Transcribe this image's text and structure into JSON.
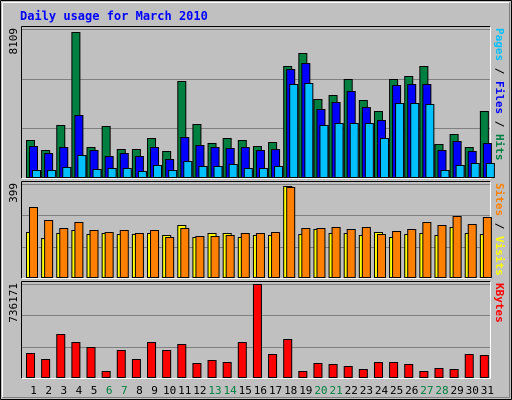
{
  "chart_data": {
    "type": "bar",
    "title": "Daily usage for March 2010",
    "categories": [
      "1",
      "2",
      "3",
      "4",
      "5",
      "6",
      "7",
      "8",
      "9",
      "10",
      "11",
      "12",
      "13",
      "14",
      "15",
      "16",
      "17",
      "18",
      "19",
      "20",
      "21",
      "22",
      "23",
      "24",
      "25",
      "26",
      "27",
      "28",
      "29",
      "30",
      "31"
    ],
    "weekend_days": [
      "6",
      "7",
      "13",
      "14",
      "20",
      "21",
      "27",
      "28"
    ],
    "panels": [
      {
        "id": "hits",
        "ymax_label": "8109",
        "ymax": 8109,
        "series": [
          {
            "name": "Hits",
            "color": "#008040",
            "values": [
              2050,
              1520,
              2880,
              7950,
              1680,
              2820,
              1560,
              1590,
              2150,
              1470,
              5280,
              2930,
              1930,
              2170,
              2060,
              1730,
              1950,
              6080,
              6800,
              4290,
              4540,
              5410,
              4270,
              3650,
              5390,
              5530,
              6100,
              1850,
              2420,
              1660,
              3670
            ]
          },
          {
            "name": "Files",
            "color": "#0000ff",
            "values": [
              1750,
              1370,
              1680,
              3410,
              1520,
              1210,
              1370,
              1190,
              1690,
              1010,
              2250,
              1770,
              1680,
              1620,
              1680,
              1520,
              1560,
              5950,
              6260,
              3750,
              4130,
              4740,
              3880,
              3180,
              5040,
              5090,
              5120,
              1540,
              1990,
              1450,
              1880
            ]
          },
          {
            "name": "Pages",
            "color": "#00c0ff",
            "values": [
              410,
              410,
              610,
              1260,
              510,
              520,
              560,
              400,
              720,
              410,
              920,
              680,
              650,
              750,
              570,
              560,
              660,
              5090,
              5150,
              2860,
              2970,
              3000,
              3010,
              2150,
              4080,
              4070,
              4020,
              410,
              730,
              790,
              820
            ]
          }
        ],
        "right_labels": [
          {
            "text": "Pages",
            "color": "#00c0ff"
          },
          {
            "text": "Files",
            "color": "#0000ff"
          },
          {
            "text": "Hits",
            "color": "#008040"
          }
        ]
      },
      {
        "id": "visits",
        "ymax_label": "399",
        "ymax": 399,
        "series": [
          {
            "name": "Visits",
            "color": "#ffff00",
            "values": [
              196,
              168,
              193,
              204,
              188,
              193,
              186,
              185,
              190,
              182,
              226,
              173,
              191,
              193,
              172,
              181,
              183,
              389,
              185,
              209,
              193,
              193,
              181,
              196,
              176,
              186,
              189,
              182,
              216,
              193,
              186
            ]
          },
          {
            "name": "Sites",
            "color": "#ff8000",
            "values": [
              303,
              245,
              213,
              238,
              204,
              194,
              205,
              193,
              204,
              174,
              214,
              178,
              177,
              184,
              189,
              193,
              196,
              385,
              212,
              211,
              215,
              209,
              218,
              185,
              198,
              210,
              236,
              223,
              265,
              229,
              261
            ]
          }
        ],
        "right_labels": [
          {
            "text": "Sites",
            "color": "#ff8000"
          },
          {
            "text": "Visits",
            "color": "#ffff00"
          }
        ]
      },
      {
        "id": "kbytes",
        "ymax_label": "736171",
        "ymax": 736171,
        "series": [
          {
            "name": "KBytes",
            "color": "#ff0000",
            "values": [
              195000,
              145000,
              345000,
              283000,
              243000,
              53000,
              220000,
              150000,
              283000,
              219000,
              263000,
              117000,
              139000,
              123000,
              283000,
              736171,
              191000,
              309000,
              54000,
              117000,
              109000,
              96000,
              71000,
              128000,
              125000,
              106000,
              54000,
              80000,
              71000,
              185000,
              180000
            ]
          }
        ],
        "right_labels": [
          {
            "text": "KBytes",
            "color": "#ff0000"
          }
        ]
      }
    ]
  }
}
